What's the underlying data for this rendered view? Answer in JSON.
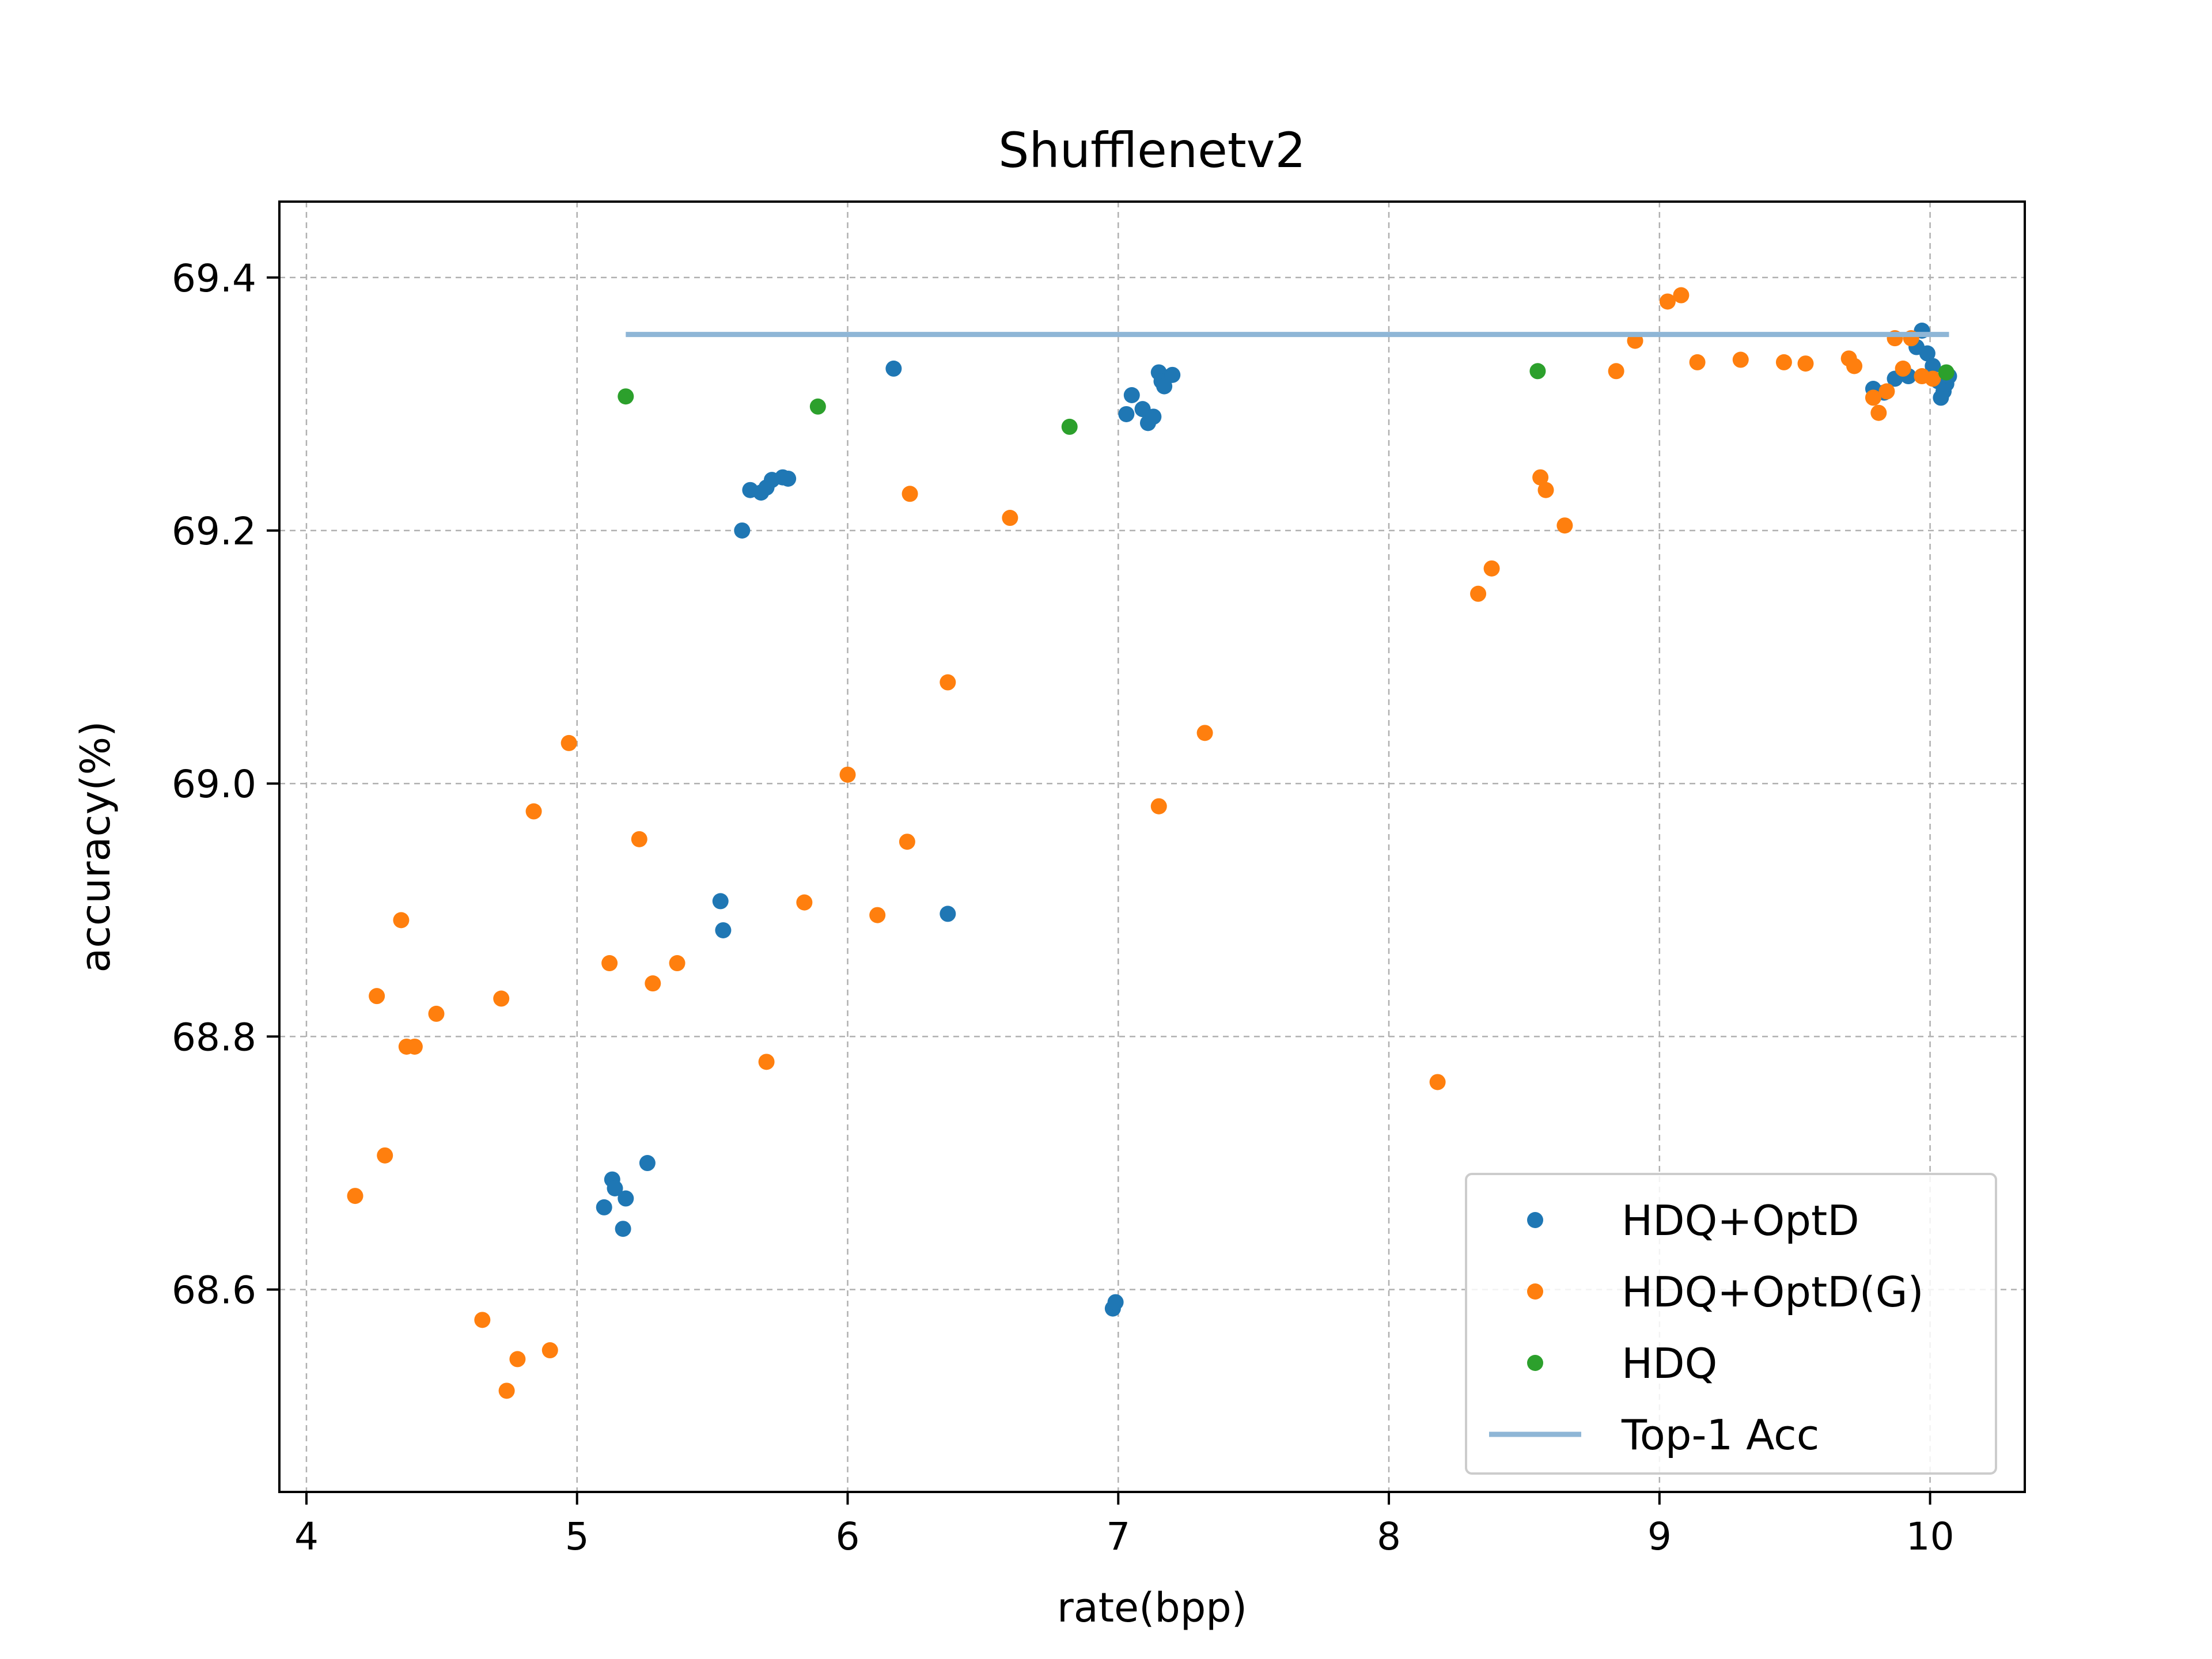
{
  "chart_data": {
    "type": "scatter",
    "title": "Shufflenetv2",
    "xlabel": "rate(bpp)",
    "ylabel": "accuracy(%)",
    "xlim": [
      3.9,
      10.35
    ],
    "ylim": [
      68.44,
      69.46
    ],
    "xticks": [
      4,
      5,
      6,
      7,
      8,
      9,
      10
    ],
    "yticks": [
      68.6,
      68.8,
      69.0,
      69.2,
      69.4
    ],
    "xtick_labels": [
      "4",
      "5",
      "6",
      "7",
      "8",
      "9",
      "10"
    ],
    "ytick_labels": [
      "68.6",
      "68.8",
      "69.0",
      "69.2",
      "69.4"
    ],
    "grid": true,
    "legend_position": "lower-right",
    "series": [
      {
        "name": "HDQ+OptD",
        "kind": "scatter",
        "color": "#1f77b4",
        "points": [
          [
            5.1,
            68.665
          ],
          [
            5.13,
            68.687
          ],
          [
            5.14,
            68.68
          ],
          [
            5.17,
            68.648
          ],
          [
            5.18,
            68.672
          ],
          [
            5.26,
            68.7
          ],
          [
            5.53,
            68.907
          ],
          [
            5.54,
            68.884
          ],
          [
            5.61,
            69.2
          ],
          [
            5.64,
            69.232
          ],
          [
            5.68,
            69.23
          ],
          [
            5.7,
            69.234
          ],
          [
            5.72,
            69.24
          ],
          [
            5.76,
            69.242
          ],
          [
            5.78,
            69.241
          ],
          [
            6.17,
            69.328
          ],
          [
            6.37,
            68.897
          ],
          [
            6.98,
            68.585
          ],
          [
            6.99,
            68.59
          ],
          [
            7.03,
            69.292
          ],
          [
            7.05,
            69.307
          ],
          [
            7.09,
            69.296
          ],
          [
            7.11,
            69.285
          ],
          [
            7.13,
            69.29
          ],
          [
            7.15,
            69.325
          ],
          [
            7.16,
            69.318
          ],
          [
            7.17,
            69.314
          ],
          [
            7.2,
            69.323
          ],
          [
            9.79,
            69.312
          ],
          [
            9.83,
            69.309
          ],
          [
            9.87,
            69.32
          ],
          [
            9.92,
            69.322
          ],
          [
            9.95,
            69.345
          ],
          [
            9.97,
            69.358
          ],
          [
            9.99,
            69.34
          ],
          [
            10.01,
            69.33
          ],
          [
            10.03,
            69.318
          ],
          [
            10.04,
            69.305
          ],
          [
            10.05,
            69.31
          ],
          [
            10.06,
            69.316
          ],
          [
            10.07,
            69.322
          ]
        ]
      },
      {
        "name": "HDQ+OptD(G)",
        "kind": "scatter",
        "color": "#ff7f0e",
        "points": [
          [
            4.18,
            68.674
          ],
          [
            4.26,
            68.832
          ],
          [
            4.29,
            68.706
          ],
          [
            4.35,
            68.892
          ],
          [
            4.37,
            68.792
          ],
          [
            4.4,
            68.792
          ],
          [
            4.48,
            68.818
          ],
          [
            4.65,
            68.576
          ],
          [
            4.72,
            68.83
          ],
          [
            4.74,
            68.52
          ],
          [
            4.78,
            68.545
          ],
          [
            4.84,
            68.978
          ],
          [
            4.9,
            68.552
          ],
          [
            4.97,
            69.032
          ],
          [
            5.12,
            68.858
          ],
          [
            5.23,
            68.956
          ],
          [
            5.28,
            68.842
          ],
          [
            5.37,
            68.858
          ],
          [
            5.7,
            68.78
          ],
          [
            5.84,
            68.906
          ],
          [
            6.0,
            69.007
          ],
          [
            6.11,
            68.896
          ],
          [
            6.22,
            68.954
          ],
          [
            6.23,
            69.229
          ],
          [
            6.37,
            69.08
          ],
          [
            6.6,
            69.21
          ],
          [
            7.15,
            68.982
          ],
          [
            7.32,
            69.04
          ],
          [
            8.18,
            68.764
          ],
          [
            8.33,
            69.15
          ],
          [
            8.38,
            69.17
          ],
          [
            8.56,
            69.242
          ],
          [
            8.58,
            69.232
          ],
          [
            8.65,
            69.204
          ],
          [
            8.84,
            69.326
          ],
          [
            8.91,
            69.35
          ],
          [
            9.03,
            69.381
          ],
          [
            9.08,
            69.386
          ],
          [
            9.14,
            69.333
          ],
          [
            9.3,
            69.335
          ],
          [
            9.46,
            69.333
          ],
          [
            9.54,
            69.332
          ],
          [
            9.7,
            69.336
          ],
          [
            9.72,
            69.33
          ],
          [
            9.79,
            69.305
          ],
          [
            9.81,
            69.293
          ],
          [
            9.84,
            69.31
          ],
          [
            9.87,
            69.352
          ],
          [
            9.9,
            69.328
          ],
          [
            9.93,
            69.352
          ],
          [
            9.97,
            69.322
          ],
          [
            10.01,
            69.32
          ]
        ]
      },
      {
        "name": "HDQ",
        "kind": "scatter",
        "color": "#2ca02c",
        "points": [
          [
            5.18,
            69.306
          ],
          [
            5.89,
            69.298
          ],
          [
            6.82,
            69.282
          ],
          [
            8.55,
            69.326
          ],
          [
            10.06,
            69.325
          ]
        ]
      },
      {
        "name": "Top-1 Acc",
        "kind": "line",
        "color": "#8fb6d6",
        "points": [
          [
            5.18,
            69.355
          ],
          [
            10.07,
            69.355
          ]
        ]
      }
    ]
  }
}
